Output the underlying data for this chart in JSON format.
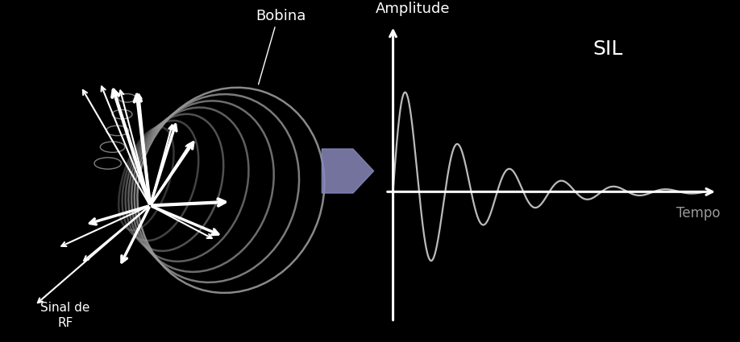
{
  "bg_color": "#000000",
  "axis_color": "#ffffff",
  "signal_color": "#bbbbbb",
  "label_color": "#ffffff",
  "dim_label_color": "#999999",
  "arrow_fill_color": "#8888bb",
  "coil_color": "#999999",
  "labels": {
    "bobina": "Bobina",
    "amplitude": "Amplitude",
    "tempo": "Tempo",
    "sil": "SIL",
    "sinal_de": "Sinal de",
    "rf": "RF"
  },
  "fig_width": 9.18,
  "fig_height": 4.25,
  "dpi": 100
}
